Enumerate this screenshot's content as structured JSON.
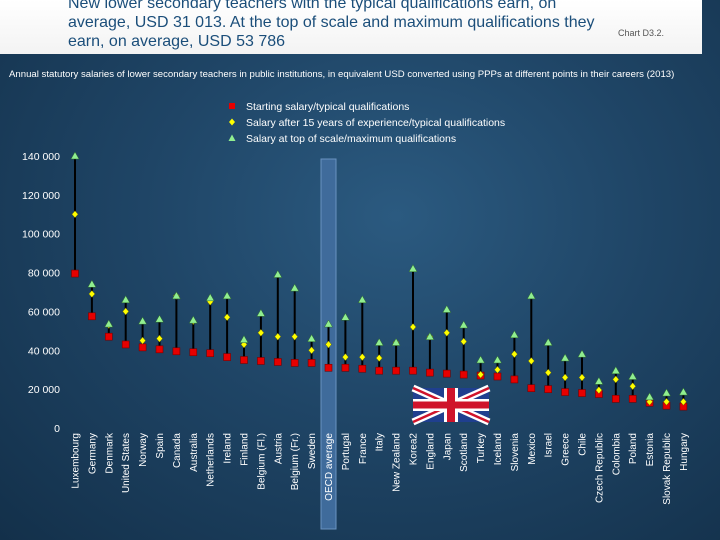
{
  "header": {
    "title": "New lower secondary teachers with the typical qualifications earn, on average, USD 31 013. At the top of scale and maximum qualifications they earn, on average, USD 53 786",
    "chart_id": "Chart D3.2."
  },
  "subtitle": "Annual statutory salaries of lower secondary teachers in public institutions, in equivalent USD converted using PPPs at different points in their careers (2013)",
  "colors": {
    "background": "#1f4566",
    "starting": "#e60000",
    "fifteen_years": "#ffff00",
    "top_scale": "#90ee90",
    "range_line": "#000000",
    "oecd_highlight": "#3f6b9b"
  },
  "chart_data": {
    "type": "scatter",
    "title": "",
    "xlabel": "",
    "ylabel": "",
    "ylim": [
      0,
      140000
    ],
    "yticks": [
      "0",
      "20 000",
      "40 000",
      "60 000",
      "80 000",
      "100 000",
      "120 000",
      "140 000"
    ],
    "legend_position": "top-center",
    "highlight_category": "OECD average",
    "categories": [
      "Luxembourg",
      "Germany",
      "Denmark",
      "United States",
      "Norway",
      "Spain",
      "Canada",
      "Australia",
      "Netherlands",
      "Ireland",
      "Finland",
      "Belgium (Fl.)",
      "Austria",
      "Belgium (Fr.)",
      "Sweden",
      "OECD average",
      "Portugal",
      "France",
      "Italy",
      "New Zealand",
      "Korea2",
      "England",
      "Japan",
      "Scotland",
      "Turkey",
      "Iceland",
      "Slovenia",
      "Mexico",
      "Israel",
      "Greece",
      "Chile",
      "Czech Republic",
      "Colombia",
      "Poland",
      "Estonia",
      "Slovak Republic",
      "Hungary"
    ],
    "series": [
      {
        "name": "Starting salary/typical qualifications",
        "marker": "square",
        "values": [
          79500,
          57500,
          47000,
          43000,
          41500,
          40500,
          39500,
          39000,
          38500,
          36500,
          35000,
          34500,
          34000,
          33500,
          33500,
          31000,
          31000,
          30500,
          29500,
          29500,
          29500,
          28500,
          28000,
          27500,
          27000,
          26500,
          25000,
          20500,
          20000,
          18500,
          18000,
          17500,
          15000,
          15000,
          13000,
          11500,
          11000
        ]
      },
      {
        "name": "Salary after 15 years of experience/typical qualifications",
        "marker": "diamond",
        "values": [
          110000,
          69000,
          53000,
          60000,
          45000,
          46000,
          68000,
          55000,
          65000,
          57000,
          43000,
          49000,
          47000,
          47000,
          40000,
          43000,
          36500,
          36500,
          36000,
          44000,
          52000,
          47000,
          49000,
          44500,
          27500,
          30000,
          38000,
          34500,
          28500,
          26000,
          26000,
          19500,
          25000,
          21500,
          13500,
          13500,
          13500
        ]
      },
      {
        "name": "Salary at top of scale/maximum qualifications",
        "marker": "triangle",
        "values": [
          140000,
          74000,
          53500,
          66000,
          55000,
          56000,
          68000,
          55500,
          67000,
          68000,
          45500,
          59000,
          79000,
          72000,
          46000,
          53500,
          57000,
          66000,
          44000,
          44000,
          82000,
          47000,
          61000,
          53000,
          35000,
          35000,
          48000,
          68000,
          44000,
          36000,
          38000,
          24000,
          29500,
          26500,
          16000,
          18000,
          18500
        ]
      }
    ]
  }
}
